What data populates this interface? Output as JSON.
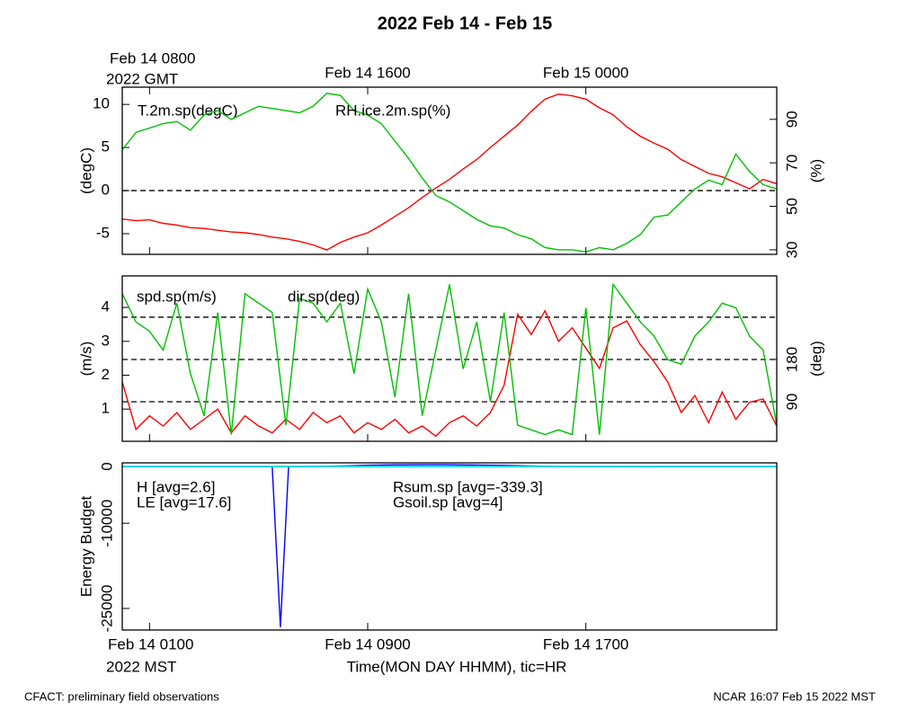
{
  "chart_data": [
    {
      "type": "line",
      "title": "2022 Feb 14 - Feb 15",
      "x2ticks": [
        {
          "value": 1,
          "label": "Feb 14 0800"
        },
        {
          "value": 9,
          "label": "Feb 14 1600"
        },
        {
          "value": 17,
          "label": "Feb 15 0000"
        }
      ],
      "x2_sublabel": "2022 GMT",
      "x": [
        0,
        0.5,
        1,
        1.5,
        2,
        2.5,
        3,
        3.5,
        4,
        4.5,
        5,
        5.5,
        6,
        6.5,
        7,
        7.5,
        8,
        8.5,
        9,
        9.5,
        10,
        10.5,
        11,
        11.5,
        12,
        12.5,
        13,
        13.5,
        14,
        14.5,
        15,
        15.5,
        16,
        16.5,
        17,
        17.5,
        18,
        18.5,
        19,
        19.5,
        20,
        20.5,
        21,
        21.5,
        22,
        22.5,
        23,
        23.5,
        24
      ],
      "xlim": [
        0,
        24
      ],
      "ylabel": "(degC)",
      "ylim": [
        -7.4,
        12
      ],
      "yticks": [
        -5,
        0,
        5,
        10
      ],
      "y2label": "(%)",
      "y2lim": [
        27.9,
        104.8
      ],
      "y2ticks": [
        30,
        50,
        70,
        90
      ],
      "hlines": [
        0
      ],
      "series": [
        {
          "name": "T.2m.sp(degC)",
          "color": "#ff0000",
          "axis": "y",
          "values": [
            -3.3,
            -3.5,
            -3.4,
            -3.8,
            -4.0,
            -4.3,
            -4.4,
            -4.6,
            -4.8,
            -4.9,
            -5.1,
            -5.4,
            -5.6,
            -5.9,
            -6.3,
            -6.9,
            -6.0,
            -5.4,
            -4.9,
            -4.0,
            -3.0,
            -2.0,
            -0.8,
            0.3,
            1.3,
            2.5,
            3.6,
            5.0,
            6.3,
            7.6,
            9.2,
            10.6,
            11.2,
            11.0,
            10.6,
            9.6,
            8.8,
            7.4,
            6.3,
            5.5,
            4.8,
            3.6,
            2.8,
            2.0,
            1.6,
            0.9,
            0.2,
            1.3,
            0.8
          ]
        },
        {
          "name": "RH.ice.2m.sp(%)",
          "color": "#00c000",
          "axis": "y2",
          "values": [
            76,
            84,
            86,
            88,
            89,
            85,
            92,
            94,
            90,
            93,
            96,
            95,
            94,
            93,
            96,
            102,
            101,
            94,
            92,
            88,
            80,
            72,
            63,
            55,
            52,
            48,
            44,
            41,
            40,
            37,
            35,
            31,
            30,
            30,
            29,
            31,
            30,
            33,
            37,
            45,
            46,
            52,
            58,
            62,
            60,
            74,
            66,
            60,
            58
          ]
        }
      ]
    },
    {
      "type": "line",
      "x": [
        0,
        0.5,
        1,
        1.5,
        2,
        2.5,
        3,
        3.5,
        4,
        4.5,
        5,
        5.5,
        6,
        6.5,
        7,
        7.5,
        8,
        8.5,
        9,
        9.5,
        10,
        10.5,
        11,
        11.5,
        12,
        12.5,
        13,
        13.5,
        14,
        14.5,
        15,
        15.5,
        16,
        16.5,
        17,
        17.5,
        18,
        18.5,
        19,
        19.5,
        20,
        20.5,
        21,
        21.5,
        22,
        22.5,
        23,
        23.5,
        24
      ],
      "xlim": [
        0,
        24
      ],
      "ylabel": "(m/s)",
      "ylim": [
        0.05,
        4.93
      ],
      "yticks": [
        1,
        2,
        3,
        4
      ],
      "y2label": "(deg)",
      "y2lim": [
        5.7,
        358
      ],
      "y2ticks": [
        90,
        180
      ],
      "y2hlines": [
        90,
        180,
        270
      ],
      "series": [
        {
          "name": "spd.sp(m/s)",
          "color": "#ff0000",
          "axis": "y",
          "values": [
            1.8,
            0.4,
            0.8,
            0.5,
            0.9,
            0.4,
            0.7,
            1.0,
            0.3,
            0.8,
            0.5,
            0.3,
            0.7,
            0.4,
            0.9,
            0.6,
            0.8,
            0.3,
            0.6,
            0.4,
            0.7,
            0.3,
            0.5,
            0.2,
            0.6,
            0.8,
            0.5,
            0.9,
            1.7,
            3.8,
            3.2,
            3.9,
            3.0,
            3.4,
            2.8,
            2.2,
            3.4,
            3.6,
            2.9,
            2.4,
            1.8,
            0.9,
            1.4,
            0.6,
            1.5,
            0.7,
            1.2,
            1.3,
            0.5
          ]
        },
        {
          "name": "dir.sp(deg)",
          "color": "#00c000",
          "axis": "y2",
          "values": [
            320,
            260,
            240,
            200,
            300,
            150,
            60,
            280,
            20,
            320,
            300,
            280,
            40,
            310,
            300,
            260,
            300,
            150,
            330,
            260,
            100,
            320,
            60,
            200,
            340,
            160,
            260,
            90,
            280,
            40,
            30,
            20,
            30,
            20,
            290,
            20,
            340,
            300,
            260,
            230,
            180,
            170,
            230,
            260,
            300,
            290,
            230,
            200,
            40
          ]
        }
      ]
    },
    {
      "type": "line",
      "xlabel": "Time(MON DAY HHMM), tic=HR",
      "xticks": [
        {
          "value": 1,
          "label": "Feb 14 0100"
        },
        {
          "value": 9,
          "label": "Feb 14 0900"
        },
        {
          "value": 17,
          "label": "Feb 14 1700"
        }
      ],
      "x_sublabel": "2022 MST",
      "x": [
        0,
        1,
        2,
        3,
        4,
        5,
        5.5,
        5.8,
        6.1,
        7,
        8,
        9,
        10,
        11,
        12,
        13,
        14,
        15,
        16,
        17,
        18,
        19,
        20,
        21,
        22,
        23,
        24
      ],
      "xlim": [
        0,
        24
      ],
      "ylabel": "Energy Budget",
      "ylim": [
        -28800,
        630
      ],
      "yticks": [
        0,
        -10000,
        -25000
      ],
      "hlines": [
        0
      ],
      "series": [
        {
          "name": "H [avg=2.6]",
          "color": "#ff0000",
          "values": [
            -10,
            -10,
            -12,
            -10,
            -8,
            -8,
            -8,
            -8,
            -8,
            -5,
            0,
            10,
            20,
            25,
            25,
            20,
            15,
            5,
            -5,
            -10,
            -10,
            -12,
            -10,
            -10,
            -10,
            -10,
            -10
          ]
        },
        {
          "name": "LE [avg=17.6]",
          "color": "#00c000",
          "values": [
            5,
            5,
            5,
            5,
            5,
            5,
            5,
            5,
            5,
            8,
            15,
            30,
            40,
            45,
            45,
            40,
            30,
            15,
            8,
            5,
            5,
            5,
            5,
            5,
            5,
            5,
            5
          ]
        },
        {
          "name": "Rsum.sp [avg=-339.3]",
          "color": "#0000ff",
          "values": [
            -50,
            -50,
            -50,
            -50,
            -50,
            -50,
            -50,
            -28300,
            -50,
            -20,
            80,
            200,
            280,
            300,
            290,
            250,
            180,
            80,
            -20,
            -50,
            -50,
            -50,
            -50,
            -50,
            -50,
            -50,
            -50
          ]
        },
        {
          "name": "Gsoil.sp [avg=4]",
          "color": "#00ffff",
          "values": [
            4,
            4,
            4,
            4,
            4,
            4,
            4,
            4,
            4,
            4,
            4,
            4,
            4,
            4,
            4,
            4,
            4,
            4,
            4,
            4,
            4,
            4,
            4,
            4,
            4,
            4,
            4
          ]
        }
      ]
    }
  ],
  "footer_left": "CFACT: preliminary field observations",
  "footer_right": "NCAR 16:07 Feb 15 2022 MST"
}
